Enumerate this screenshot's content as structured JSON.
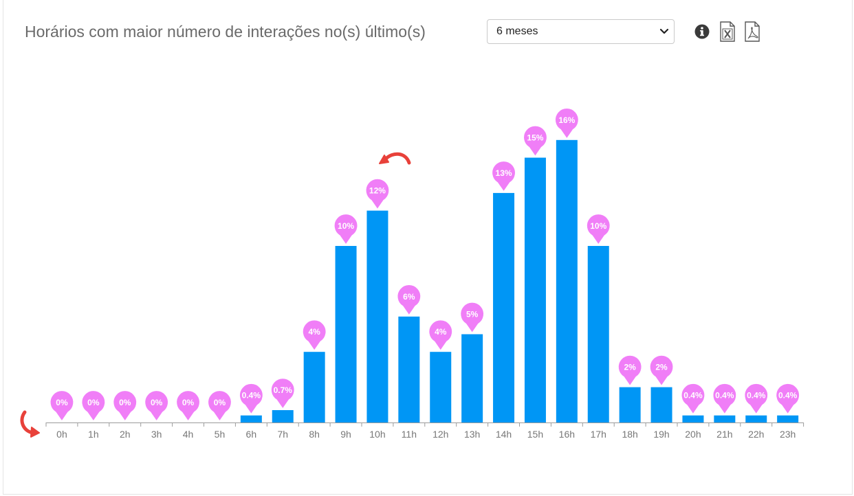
{
  "header": {
    "title": "Horários com maior número de interações no(s) último(s)",
    "period_select": {
      "selected": "6 meses"
    }
  },
  "toolbar": {
    "info_icon": "info-circle-icon",
    "excel_icon": "file-excel-icon",
    "pdf_icon": "file-pdf-icon"
  },
  "colors": {
    "bar": "#0096f5",
    "marker": "#f07ef7",
    "marker_text": "#ffffff",
    "annotation_arrow": "#e8413a",
    "axis": "#9b9b9b"
  },
  "chart_data": {
    "type": "bar",
    "title": "",
    "xlabel": "",
    "ylabel": "",
    "categories": [
      "0h",
      "1h",
      "2h",
      "3h",
      "4h",
      "5h",
      "6h",
      "7h",
      "8h",
      "9h",
      "10h",
      "11h",
      "12h",
      "13h",
      "14h",
      "15h",
      "16h",
      "17h",
      "18h",
      "19h",
      "20h",
      "21h",
      "22h",
      "23h"
    ],
    "values": [
      0,
      0,
      0,
      0,
      0,
      0,
      0.4,
      0.7,
      4,
      10,
      12,
      6,
      4,
      5,
      13,
      15,
      16,
      10,
      2,
      2,
      0.4,
      0.4,
      0.4,
      0.4
    ],
    "data_labels": [
      "0%",
      "0%",
      "0%",
      "0%",
      "0%",
      "0%",
      "0.4%",
      "0.7%",
      "4%",
      "10%",
      "12%",
      "6%",
      "4%",
      "5%",
      "13%",
      "15%",
      "16%",
      "10%",
      "2%",
      "2%",
      "0.4%",
      "0.4%",
      "0.4%",
      "0.4%"
    ],
    "ylim": [
      0,
      16
    ],
    "grid": false,
    "legend": "none"
  }
}
